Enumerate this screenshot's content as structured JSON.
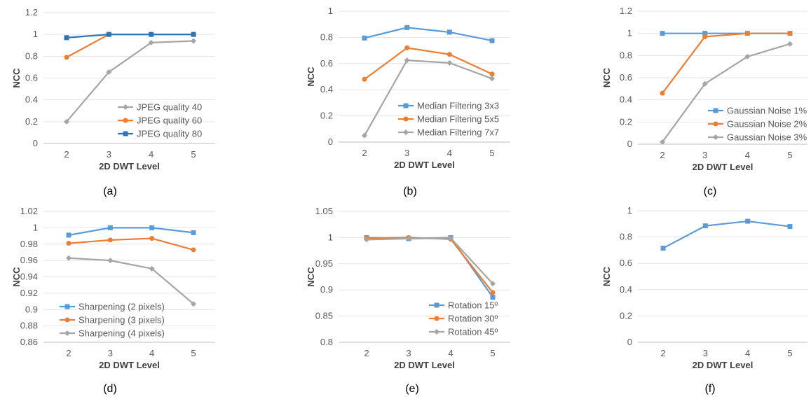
{
  "chart_data": [
    {
      "type": "line",
      "caption": "(a)",
      "xlabel": "2D DWT Level",
      "ylabel": "NCC",
      "categories": [
        "2",
        "3",
        "4",
        "5"
      ],
      "ylim": [
        0,
        1.2
      ],
      "yticks": [
        "0",
        "0.2",
        "0.4",
        "0.6",
        "0.8",
        "1",
        "1.2"
      ],
      "legend_position": "bottom-right",
      "series": [
        {
          "name": "JPEG quality 40",
          "values": [
            0.2,
            0.655,
            0.925,
            0.94
          ],
          "color": "#a5a5a5",
          "marker": "diamond"
        },
        {
          "name": "JPEG quality 60",
          "values": [
            0.79,
            1.0,
            1.0,
            1.0
          ],
          "color": "#ed7d31",
          "marker": "circle"
        },
        {
          "name": "JPEG quality 80",
          "values": [
            0.97,
            1.0,
            1.0,
            1.0
          ],
          "color": "#2e75b6",
          "marker": "square"
        }
      ]
    },
    {
      "type": "line",
      "caption": "(b)",
      "xlabel": "2D DWT Level",
      "ylabel": "NCC",
      "categories": [
        "2",
        "3",
        "4",
        "5"
      ],
      "ylim": [
        0,
        1
      ],
      "yticks": [
        "0",
        "0.2",
        "0.4",
        "0.6",
        "0.8",
        "1"
      ],
      "legend_position": "bottom-right",
      "series": [
        {
          "name": "Median Filtering 3x3",
          "values": [
            0.795,
            0.875,
            0.84,
            0.775
          ],
          "color": "#5b9bd5",
          "marker": "square"
        },
        {
          "name": "Median Filtering 5x5",
          "values": [
            0.48,
            0.72,
            0.67,
            0.52
          ],
          "color": "#ed7d31",
          "marker": "circle"
        },
        {
          "name": "Median Filtering 7x7",
          "values": [
            0.05,
            0.625,
            0.605,
            0.485
          ],
          "color": "#a5a5a5",
          "marker": "diamond"
        }
      ]
    },
    {
      "type": "line",
      "caption": "(c)",
      "xlabel": "2D DWT Level",
      "ylabel": "NCC",
      "categories": [
        "2",
        "3",
        "4",
        "5"
      ],
      "ylim": [
        0,
        1.2
      ],
      "yticks": [
        "0",
        "0.2",
        "0.4",
        "0.6",
        "0.8",
        "1",
        "1.2"
      ],
      "legend_position": "bottom-right",
      "series": [
        {
          "name": "Gaussian Noise 1%",
          "values": [
            1.0,
            1.0,
            1.0,
            1.0
          ],
          "color": "#5b9bd5",
          "marker": "square"
        },
        {
          "name": "Gaussian Noise 2%",
          "values": [
            0.46,
            0.97,
            1.0,
            1.0
          ],
          "color": "#ed7d31",
          "marker": "circle"
        },
        {
          "name": "Gaussian Noise 3%",
          "values": [
            0.02,
            0.545,
            0.79,
            0.905
          ],
          "color": "#a5a5a5",
          "marker": "diamond"
        }
      ]
    },
    {
      "type": "line",
      "caption": "(d)",
      "xlabel": "2D DWT Level",
      "ylabel": "NCC",
      "categories": [
        "2",
        "3",
        "4",
        "5"
      ],
      "ylim": [
        0.86,
        1.02
      ],
      "yticks": [
        "0.86",
        "0.88",
        "0.9",
        "0.92",
        "0.94",
        "0.96",
        "0.98",
        "1",
        "1.02"
      ],
      "legend_position": "bottom-left",
      "series": [
        {
          "name": "Sharpening (2 pixels)",
          "values": [
            0.991,
            1.0,
            1.0,
            0.994
          ],
          "color": "#5b9bd5",
          "marker": "square"
        },
        {
          "name": "Sharpening (3 pixels)",
          "values": [
            0.981,
            0.985,
            0.987,
            0.973
          ],
          "color": "#ed7d31",
          "marker": "circle"
        },
        {
          "name": "Sharpening (4 pixels)",
          "values": [
            0.963,
            0.96,
            0.95,
            0.907
          ],
          "color": "#a5a5a5",
          "marker": "diamond"
        }
      ]
    },
    {
      "type": "line",
      "caption": "(e)",
      "xlabel": "2D DWT Level",
      "ylabel": "NCC",
      "categories": [
        "2",
        "3",
        "4",
        "5"
      ],
      "ylim": [
        0.8,
        1.05
      ],
      "yticks": [
        "0.8",
        "0.85",
        "0.9",
        "0.95",
        "1",
        "1.05"
      ],
      "legend_position": "bottom-right",
      "series": [
        {
          "name": "Rotation 15º",
          "values": [
            1.0,
            0.998,
            1.0,
            0.886
          ],
          "color": "#5b9bd5",
          "marker": "square"
        },
        {
          "name": "Rotation 30º",
          "values": [
            0.999,
            1.0,
            0.997,
            0.895
          ],
          "color": "#ed7d31",
          "marker": "circle"
        },
        {
          "name": "Rotation 45º",
          "values": [
            0.996,
            0.998,
            0.999,
            0.912
          ],
          "color": "#a5a5a5",
          "marker": "diamond"
        }
      ]
    },
    {
      "type": "line",
      "caption": "(f)",
      "xlabel": "2D DWT Level",
      "ylabel": "NCC",
      "categories": [
        "2",
        "3",
        "4",
        "5"
      ],
      "ylim": [
        0,
        1
      ],
      "yticks": [
        "0",
        "0.2",
        "0.4",
        "0.6",
        "0.8",
        "1"
      ],
      "legend_position": "none",
      "series": [
        {
          "values": [
            0.715,
            0.885,
            0.92,
            0.88
          ],
          "color": "#5b9bd5",
          "marker": "square"
        }
      ]
    }
  ]
}
